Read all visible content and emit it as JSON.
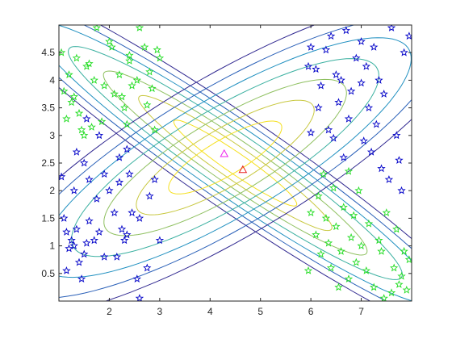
{
  "chart_data": {
    "type": "scatter",
    "title": "",
    "xlabel": "",
    "ylabel": "",
    "xlim": [
      1.0,
      8.0
    ],
    "ylim": [
      0.0,
      5.0
    ],
    "x_ticks": [
      2,
      3,
      4,
      5,
      6,
      7
    ],
    "y_ticks": [
      0.5,
      1,
      1.5,
      2,
      2.5,
      3,
      3.5,
      4,
      4.5
    ],
    "x_tick_labels": [
      "2",
      "3",
      "4",
      "5",
      "6",
      "7"
    ],
    "y_tick_labels": [
      "0.5",
      "1",
      "1.5",
      "2",
      "2.5",
      "3",
      "3.5",
      "4",
      "4.5"
    ],
    "grid": false,
    "legend": "none",
    "colors": {
      "class_a": "#0000c8",
      "class_b": "#22dd22",
      "mean_magenta": "#ee22ee",
      "mean_red": "#e82020",
      "axis": "#262626"
    },
    "contour_sets": [
      {
        "name": "",
        "center": [
          4.5,
          2.5
        ],
        "semi_axes": [
          4.1,
          0.55
        ],
        "angle_deg": -32,
        "scales": [
          0.35,
          0.55,
          0.75,
          0.95,
          1.15,
          1.35,
          1.55
        ],
        "colors": [
          "#f5e020",
          "#c8c840",
          "#8fc060",
          "#3ab0a0",
          "#2090c0",
          "#2a60b8",
          "#302890"
        ]
      },
      {
        "name": "",
        "center": [
          4.3,
          2.6
        ],
        "semi_axes": [
          3.6,
          0.95
        ],
        "angle_deg": 28,
        "scales": [
          0.35,
          0.55,
          0.75,
          0.95,
          1.15,
          1.35,
          1.55
        ],
        "colors": [
          "#f5e020",
          "#c8c840",
          "#8fc060",
          "#3ab0a0",
          "#2090c0",
          "#2a60b8",
          "#302890"
        ]
      }
    ],
    "series": [
      {
        "marker": "pentagram",
        "color": "#0000c8",
        "points": [
          [
            1.05,
            2.25
          ],
          [
            1.1,
            1.5
          ],
          [
            1.15,
            1.25
          ],
          [
            1.2,
            0.95
          ],
          [
            1.25,
            1.1
          ],
          [
            1.3,
            1.0
          ],
          [
            1.35,
            1.3
          ],
          [
            1.4,
            0.7
          ],
          [
            1.45,
            0.4
          ],
          [
            1.5,
            0.85
          ],
          [
            1.55,
            1.05
          ],
          [
            1.6,
            1.45
          ],
          [
            1.7,
            1.1
          ],
          [
            1.8,
            1.25
          ],
          [
            1.9,
            0.8
          ],
          [
            2.0,
            2.0
          ],
          [
            2.1,
            1.6
          ],
          [
            2.2,
            2.6
          ],
          [
            2.25,
            1.3
          ],
          [
            2.3,
            1.1
          ],
          [
            2.35,
            1.2
          ],
          [
            2.4,
            2.3
          ],
          [
            2.45,
            1.6
          ],
          [
            2.55,
            0.4
          ],
          [
            2.6,
            1.5
          ],
          [
            2.75,
            0.6
          ],
          [
            2.8,
            1.9
          ],
          [
            2.9,
            2.2
          ],
          [
            3.0,
            1.1
          ],
          [
            1.3,
            2.0
          ],
          [
            1.5,
            2.5
          ],
          [
            1.6,
            2.2
          ],
          [
            1.75,
            1.85
          ],
          [
            1.9,
            2.3
          ],
          [
            2.15,
            0.8
          ],
          [
            2.35,
            2.75
          ],
          [
            1.8,
            3.0
          ],
          [
            1.35,
            2.7
          ],
          [
            1.55,
            3.3
          ],
          [
            2.6,
            0.05
          ],
          [
            2.2,
            2.15
          ],
          [
            1.15,
            0.55
          ],
          [
            6.0,
            4.6
          ],
          [
            6.1,
            4.2
          ],
          [
            6.2,
            3.9
          ],
          [
            6.3,
            4.55
          ],
          [
            6.4,
            4.8
          ],
          [
            6.5,
            4.1
          ],
          [
            6.55,
            3.6
          ],
          [
            6.6,
            4.0
          ],
          [
            6.7,
            4.9
          ],
          [
            6.75,
            3.3
          ],
          [
            6.8,
            3.8
          ],
          [
            6.9,
            4.4
          ],
          [
            7.0,
            3.95
          ],
          [
            7.05,
            2.9
          ],
          [
            7.1,
            4.25
          ],
          [
            7.15,
            3.5
          ],
          [
            7.2,
            2.7
          ],
          [
            7.25,
            4.6
          ],
          [
            7.3,
            3.2
          ],
          [
            7.4,
            2.4
          ],
          [
            7.45,
            3.75
          ],
          [
            7.55,
            2.2
          ],
          [
            7.6,
            4.95
          ],
          [
            7.7,
            3.0
          ],
          [
            7.75,
            2.55
          ],
          [
            7.8,
            2.0
          ],
          [
            7.85,
            4.5
          ],
          [
            7.95,
            4.8
          ],
          [
            6.35,
            3.1
          ],
          [
            6.15,
            3.5
          ],
          [
            6.0,
            3.05
          ],
          [
            5.95,
            4.25
          ],
          [
            6.65,
            2.6
          ],
          [
            6.45,
            2.95
          ],
          [
            7.0,
            4.7
          ],
          [
            7.35,
            4.0
          ]
        ]
      },
      {
        "marker": "pentagram",
        "color": "#22dd22",
        "points": [
          [
            1.05,
            4.5
          ],
          [
            1.1,
            3.8
          ],
          [
            1.15,
            3.3
          ],
          [
            1.2,
            4.1
          ],
          [
            1.25,
            3.6
          ],
          [
            1.3,
            3.7
          ],
          [
            1.35,
            4.4
          ],
          [
            1.4,
            3.4
          ],
          [
            1.45,
            3.1
          ],
          [
            1.5,
            3.0
          ],
          [
            1.55,
            4.25
          ],
          [
            1.6,
            4.3
          ],
          [
            1.7,
            4.0
          ],
          [
            1.75,
            4.95
          ],
          [
            1.85,
            3.25
          ],
          [
            1.9,
            3.9
          ],
          [
            2.0,
            4.7
          ],
          [
            2.05,
            4.6
          ],
          [
            2.1,
            3.75
          ],
          [
            2.2,
            4.1
          ],
          [
            2.3,
            3.5
          ],
          [
            2.35,
            3.2
          ],
          [
            2.4,
            4.35
          ],
          [
            2.45,
            3.9
          ],
          [
            2.55,
            4.0
          ],
          [
            2.6,
            4.95
          ],
          [
            2.7,
            4.6
          ],
          [
            2.75,
            3.55
          ],
          [
            2.8,
            4.15
          ],
          [
            2.85,
            3.85
          ],
          [
            2.9,
            3.1
          ],
          [
            3.0,
            4.4
          ],
          [
            2.4,
            4.45
          ],
          [
            1.65,
            3.15
          ],
          [
            2.25,
            3.7
          ],
          [
            2.95,
            4.55
          ],
          [
            6.0,
            1.6
          ],
          [
            6.1,
            1.2
          ],
          [
            6.15,
            1.9
          ],
          [
            6.2,
            0.85
          ],
          [
            6.3,
            1.5
          ],
          [
            6.35,
            1.05
          ],
          [
            6.4,
            0.6
          ],
          [
            6.45,
            2.05
          ],
          [
            6.5,
            1.35
          ],
          [
            6.6,
            0.9
          ],
          [
            6.65,
            1.7
          ],
          [
            6.75,
            0.4
          ],
          [
            6.8,
            1.15
          ],
          [
            6.85,
            1.55
          ],
          [
            6.9,
            0.7
          ],
          [
            6.95,
            2.0
          ],
          [
            7.0,
            1.0
          ],
          [
            7.1,
            0.55
          ],
          [
            7.15,
            1.4
          ],
          [
            7.25,
            0.25
          ],
          [
            7.35,
            1.1
          ],
          [
            7.4,
            0.9
          ],
          [
            7.5,
            1.6
          ],
          [
            7.6,
            0.15
          ],
          [
            7.65,
            0.6
          ],
          [
            7.7,
            1.3
          ],
          [
            7.75,
            0.3
          ],
          [
            7.8,
            0.45
          ],
          [
            7.85,
            0.9
          ],
          [
            7.9,
            0.2
          ],
          [
            7.95,
            0.75
          ],
          [
            6.25,
            2.3
          ],
          [
            5.95,
            0.55
          ],
          [
            6.75,
            2.35
          ],
          [
            7.45,
            0.05
          ],
          [
            6.55,
            0.25
          ]
        ]
      },
      {
        "marker": "triangle",
        "color": "#ee22ee",
        "points": [
          [
            4.28,
            2.67
          ]
        ]
      },
      {
        "marker": "triangle",
        "color": "#e82020",
        "points": [
          [
            4.65,
            2.38
          ]
        ]
      }
    ]
  }
}
